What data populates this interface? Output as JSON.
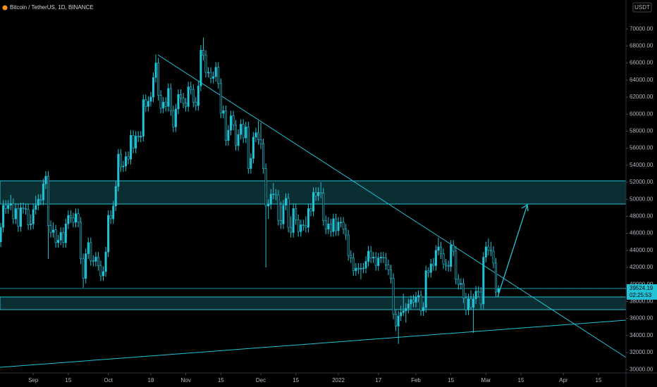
{
  "chart_data": {
    "type": "candlestick",
    "title": "Bitcoin / TetherUS, 1D, BINANCE",
    "currency": "USDT",
    "countdown": "02:25:53",
    "up_color": "#22c3d6",
    "down_color": "#0a1a1d",
    "ohlc": [
      [
        45000,
        47200,
        44400,
        46700
      ],
      [
        46700,
        49900,
        46100,
        49300
      ],
      [
        49300,
        49900,
        48300,
        48900
      ],
      [
        48900,
        49900,
        48300,
        49300
      ],
      [
        49300,
        50500,
        48700,
        49500
      ],
      [
        49500,
        50100,
        47100,
        47700
      ],
      [
        47700,
        49500,
        47100,
        48900
      ],
      [
        48900,
        49500,
        46200,
        46800
      ],
      [
        46800,
        49600,
        46200,
        49000
      ],
      [
        49000,
        49600,
        48300,
        48900
      ],
      [
        48900,
        49500,
        48200,
        48800
      ],
      [
        48800,
        49400,
        46400,
        47000
      ],
      [
        47000,
        48200,
        46400,
        47100
      ],
      [
        47100,
        49400,
        46500,
        48800
      ],
      [
        48800,
        50400,
        48200,
        49300
      ],
      [
        49300,
        50600,
        48700,
        50000
      ],
      [
        50000,
        50600,
        49300,
        49900
      ],
      [
        49900,
        52400,
        49300,
        51800
      ],
      [
        51800,
        53300,
        51200,
        52700
      ],
      [
        52700,
        53300,
        43000,
        46900
      ],
      [
        46900,
        47500,
        45500,
        46100
      ],
      [
        46100,
        47300,
        45500,
        46400
      ],
      [
        46400,
        47000,
        44300,
        44900
      ],
      [
        44900,
        45800,
        44300,
        45200
      ],
      [
        45200,
        46700,
        44600,
        46100
      ],
      [
        46100,
        46700,
        44300,
        44900
      ],
      [
        44900,
        47700,
        44300,
        47100
      ],
      [
        47100,
        48700,
        46500,
        48100
      ],
      [
        48100,
        48700,
        47200,
        47800
      ],
      [
        47800,
        48400,
        46700,
        47300
      ],
      [
        47300,
        48900,
        46700,
        48300
      ],
      [
        48300,
        48900,
        46700,
        47300
      ],
      [
        47300,
        47900,
        42400,
        43000
      ],
      [
        43000,
        43600,
        39600,
        40700
      ],
      [
        40700,
        44200,
        40100,
        43600
      ],
      [
        43600,
        45500,
        43000,
        44900
      ],
      [
        44900,
        45500,
        42200,
        42800
      ],
      [
        42800,
        43400,
        42100,
        42700
      ],
      [
        42700,
        43800,
        42100,
        43200
      ],
      [
        43200,
        43800,
        41600,
        42200
      ],
      [
        42200,
        42800,
        40400,
        41000
      ],
      [
        41000,
        42100,
        40400,
        41500
      ],
      [
        41500,
        44400,
        40900,
        43800
      ],
      [
        43800,
        48700,
        43200,
        48100
      ],
      [
        48100,
        48700,
        47100,
        47700
      ],
      [
        47700,
        49800,
        47100,
        49200
      ],
      [
        49200,
        52100,
        48600,
        51500
      ],
      [
        51500,
        55900,
        50900,
        55300
      ],
      [
        55300,
        55900,
        53200,
        53800
      ],
      [
        53800,
        54500,
        53200,
        53900
      ],
      [
        53900,
        55600,
        53300,
        55000
      ],
      [
        55000,
        55600,
        54100,
        54700
      ],
      [
        54700,
        58100,
        54100,
        57500
      ],
      [
        57500,
        58100,
        55400,
        56000
      ],
      [
        56000,
        58000,
        55400,
        57400
      ],
      [
        57400,
        58000,
        56700,
        57300
      ],
      [
        57300,
        58000,
        56700,
        57400
      ],
      [
        57400,
        62300,
        56800,
        61700
      ],
      [
        61700,
        62300,
        60300,
        60900
      ],
      [
        60900,
        62100,
        60300,
        61500
      ],
      [
        61500,
        62600,
        60900,
        62000
      ],
      [
        62000,
        64900,
        61400,
        64300
      ],
      [
        64300,
        67000,
        63700,
        66000
      ],
      [
        66000,
        66600,
        61600,
        62200
      ],
      [
        62200,
        62800,
        60100,
        60700
      ],
      [
        60700,
        62000,
        60100,
        61400
      ],
      [
        61400,
        62000,
        60300,
        60900
      ],
      [
        60900,
        63600,
        60300,
        63000
      ],
      [
        63000,
        63600,
        59800,
        60400
      ],
      [
        60400,
        61000,
        57900,
        58500
      ],
      [
        58500,
        61200,
        57900,
        60600
      ],
      [
        60600,
        62900,
        60000,
        62300
      ],
      [
        62300,
        62900,
        61300,
        61900
      ],
      [
        61900,
        62500,
        60700,
        61300
      ],
      [
        61300,
        61900,
        60300,
        60900
      ],
      [
        60900,
        63800,
        60300,
        63200
      ],
      [
        63200,
        63800,
        62300,
        62900
      ],
      [
        62900,
        63500,
        60800,
        61400
      ],
      [
        61400,
        62000,
        60400,
        61000
      ],
      [
        61000,
        63900,
        60400,
        63300
      ],
      [
        63300,
        68100,
        62700,
        67500
      ],
      [
        67500,
        69000,
        66300,
        66900
      ],
      [
        66900,
        67500,
        64300,
        64900
      ],
      [
        64900,
        65500,
        64300,
        64900
      ],
      [
        64900,
        65500,
        63600,
        64200
      ],
      [
        64200,
        65000,
        63600,
        64400
      ],
      [
        64400,
        66100,
        63800,
        65500
      ],
      [
        65500,
        66100,
        63000,
        63600
      ],
      [
        63600,
        64200,
        59500,
        60100
      ],
      [
        60100,
        61000,
        59500,
        60400
      ],
      [
        60400,
        61000,
        56300,
        56900
      ],
      [
        56900,
        58700,
        56300,
        58100
      ],
      [
        58100,
        60400,
        57500,
        59800
      ],
      [
        59800,
        60400,
        58100,
        58700
      ],
      [
        58700,
        59300,
        55700,
        56300
      ],
      [
        56300,
        58200,
        55700,
        57600
      ],
      [
        57600,
        59400,
        57000,
        58800
      ],
      [
        58800,
        59400,
        56600,
        57200
      ],
      [
        57200,
        59100,
        56600,
        58500
      ],
      [
        58500,
        59100,
        53000,
        53600
      ],
      [
        53600,
        55400,
        53000,
        54800
      ],
      [
        54800,
        57900,
        54200,
        57300
      ],
      [
        57300,
        58400,
        56700,
        57800
      ],
      [
        57800,
        59200,
        56400,
        57000
      ],
      [
        57000,
        59000,
        55900,
        56500
      ],
      [
        56500,
        57100,
        53000,
        53600
      ],
      [
        53600,
        54200,
        42000,
        49200
      ],
      [
        49200,
        50000,
        47700,
        49400
      ],
      [
        49400,
        51200,
        48800,
        50600
      ],
      [
        50600,
        51900,
        50000,
        50600
      ],
      [
        50600,
        51200,
        49900,
        50500
      ],
      [
        50500,
        51100,
        46900,
        47500
      ],
      [
        47500,
        49700,
        46500,
        47100
      ],
      [
        47100,
        49900,
        46500,
        49300
      ],
      [
        49300,
        50700,
        48700,
        50100
      ],
      [
        50100,
        50700,
        46100,
        46700
      ],
      [
        46700,
        48000,
        45500,
        46100
      ],
      [
        46100,
        49500,
        45500,
        48900
      ],
      [
        48900,
        49500,
        47000,
        47600
      ],
      [
        47600,
        48200,
        45600,
        46200
      ],
      [
        46200,
        47600,
        45600,
        47000
      ],
      [
        47000,
        47600,
        46300,
        46900
      ],
      [
        46900,
        48000,
        46100,
        46700
      ],
      [
        46700,
        49500,
        46100,
        48900
      ],
      [
        48900,
        49500,
        48000,
        48600
      ],
      [
        48600,
        51400,
        48000,
        50800
      ],
      [
        50800,
        51400,
        49800,
        50400
      ],
      [
        50400,
        51400,
        49800,
        50800
      ],
      [
        50800,
        52000,
        50100,
        50700
      ],
      [
        50700,
        51300,
        46900,
        47500
      ],
      [
        47500,
        48100,
        45900,
        46500
      ],
      [
        46500,
        47900,
        45900,
        47100
      ],
      [
        47100,
        47700,
        45600,
        46200
      ],
      [
        46200,
        48300,
        45600,
        47700
      ],
      [
        47700,
        48300,
        45700,
        46300
      ],
      [
        46300,
        47900,
        45700,
        47300
      ],
      [
        47300,
        47900,
        46700,
        47300
      ],
      [
        47300,
        47900,
        45900,
        46500
      ],
      [
        46500,
        47100,
        45200,
        45800
      ],
      [
        45800,
        46400,
        42800,
        43400
      ],
      [
        43400,
        44000,
        42500,
        43100
      ],
      [
        43100,
        43700,
        41000,
        41600
      ],
      [
        41600,
        42500,
        41000,
        41900
      ],
      [
        41900,
        42500,
        41200,
        41800
      ],
      [
        41800,
        42500,
        40600,
        41900
      ],
      [
        41900,
        42500,
        41300,
        41900
      ],
      [
        41900,
        43300,
        41300,
        42700
      ],
      [
        42700,
        44500,
        42100,
        43900
      ],
      [
        43900,
        44500,
        42500,
        43100
      ],
      [
        43100,
        43800,
        42500,
        43200
      ],
      [
        43200,
        43800,
        41600,
        42200
      ],
      [
        42200,
        43700,
        41600,
        43100
      ],
      [
        43100,
        43800,
        42500,
        43200
      ],
      [
        43200,
        43800,
        42500,
        43100
      ],
      [
        43100,
        43700,
        41700,
        42300
      ],
      [
        42300,
        42900,
        41100,
        41700
      ],
      [
        41700,
        42300,
        40100,
        40700
      ],
      [
        40700,
        41300,
        35900,
        36500
      ],
      [
        36500,
        37100,
        34500,
        35100
      ],
      [
        35100,
        36900,
        33000,
        36300
      ],
      [
        36300,
        37500,
        35700,
        36700
      ],
      [
        36700,
        38900,
        36300,
        36900
      ],
      [
        36900,
        37800,
        35500,
        37200
      ],
      [
        37200,
        38300,
        36600,
        37700
      ],
      [
        37700,
        38700,
        37100,
        38200
      ],
      [
        38200,
        38800,
        37300,
        37900
      ],
      [
        37900,
        39100,
        37300,
        38500
      ],
      [
        38500,
        39300,
        37900,
        38700
      ],
      [
        38700,
        39300,
        36300,
        36900
      ],
      [
        36900,
        37900,
        36300,
        37300
      ],
      [
        37300,
        42200,
        36700,
        41600
      ],
      [
        41600,
        42000,
        40800,
        41400
      ],
      [
        41400,
        43000,
        40800,
        42400
      ],
      [
        42400,
        43100,
        41600,
        42200
      ],
      [
        42200,
        44600,
        41600,
        44000
      ],
      [
        44000,
        45500,
        43400,
        44400
      ],
      [
        44400,
        45000,
        43000,
        43600
      ],
      [
        43600,
        44200,
        41800,
        42400
      ],
      [
        42400,
        43000,
        41600,
        42200
      ],
      [
        42200,
        42800,
        41500,
        42100
      ],
      [
        42100,
        45200,
        41500,
        44600
      ],
      [
        44600,
        45200,
        43300,
        43900
      ],
      [
        43900,
        44500,
        40000,
        40600
      ],
      [
        40600,
        41200,
        39400,
        40000
      ],
      [
        40000,
        40700,
        39400,
        40100
      ],
      [
        40100,
        40700,
        37800,
        38400
      ],
      [
        38400,
        39000,
        36400,
        37000
      ],
      [
        37000,
        38900,
        36400,
        38300
      ],
      [
        38300,
        39300,
        37000,
        37300
      ],
      [
        37300,
        38900,
        34300,
        38300
      ],
      [
        38300,
        39800,
        37700,
        39200
      ],
      [
        39200,
        39800,
        38500,
        39100
      ],
      [
        39100,
        39700,
        37100,
        37700
      ],
      [
        37700,
        43800,
        37100,
        43200
      ],
      [
        43200,
        45000,
        42600,
        44400
      ],
      [
        44400,
        45400,
        43400,
        44000
      ],
      [
        44000,
        45000,
        43300,
        43900
      ],
      [
        43900,
        44500,
        41900,
        42500
      ],
      [
        42500,
        43100,
        38500,
        39100
      ],
      [
        39100,
        39900,
        38600,
        39524.19
      ]
    ],
    "xlim": [
      -0.3,
      250
    ],
    "xticks": [
      {
        "value": 13,
        "label": "Sep"
      },
      {
        "value": 27,
        "label": "15"
      },
      {
        "value": 43,
        "label": "Oct"
      },
      {
        "value": 60,
        "label": "18"
      },
      {
        "value": 74,
        "label": "Nov"
      },
      {
        "value": 88,
        "label": "15"
      },
      {
        "value": 104,
        "label": "Dec"
      },
      {
        "value": 118,
        "label": "15"
      },
      {
        "value": 135,
        "label": "2022"
      },
      {
        "value": 151,
        "label": "17"
      },
      {
        "value": 166,
        "label": "Feb"
      },
      {
        "value": 180,
        "label": "15"
      },
      {
        "value": 194,
        "label": "Mar"
      },
      {
        "value": 208,
        "label": "15"
      },
      {
        "value": 225,
        "label": "Apr"
      },
      {
        "value": 239,
        "label": "15"
      }
    ],
    "ylim": [
      29600,
      73400
    ],
    "yticks": [
      {
        "value": 30000,
        "label": "30000.00"
      },
      {
        "value": 32000,
        "label": "32000.00"
      },
      {
        "value": 34000,
        "label": "34000.00"
      },
      {
        "value": 36000,
        "label": "36000.00"
      },
      {
        "value": 38000,
        "label": "38000.00"
      },
      {
        "value": 40000,
        "label": "40000.00"
      },
      {
        "value": 42000,
        "label": "42000.00"
      },
      {
        "value": 44000,
        "label": "44000.00"
      },
      {
        "value": 46000,
        "label": "46000.00"
      },
      {
        "value": 48000,
        "label": "48000.00"
      },
      {
        "value": 50000,
        "label": "50000.00"
      },
      {
        "value": 52000,
        "label": "52000.00"
      },
      {
        "value": 54000,
        "label": "54000.00"
      },
      {
        "value": 56000,
        "label": "56000.00"
      },
      {
        "value": 58000,
        "label": "58000.00"
      },
      {
        "value": 60000,
        "label": "60000.00"
      },
      {
        "value": 62000,
        "label": "62000.00"
      },
      {
        "value": 64000,
        "label": "64000.00"
      },
      {
        "value": 66000,
        "label": "66000.00"
      },
      {
        "value": 68000,
        "label": "68000.00"
      },
      {
        "value": 70000,
        "label": "70000.00"
      }
    ]
  }
}
